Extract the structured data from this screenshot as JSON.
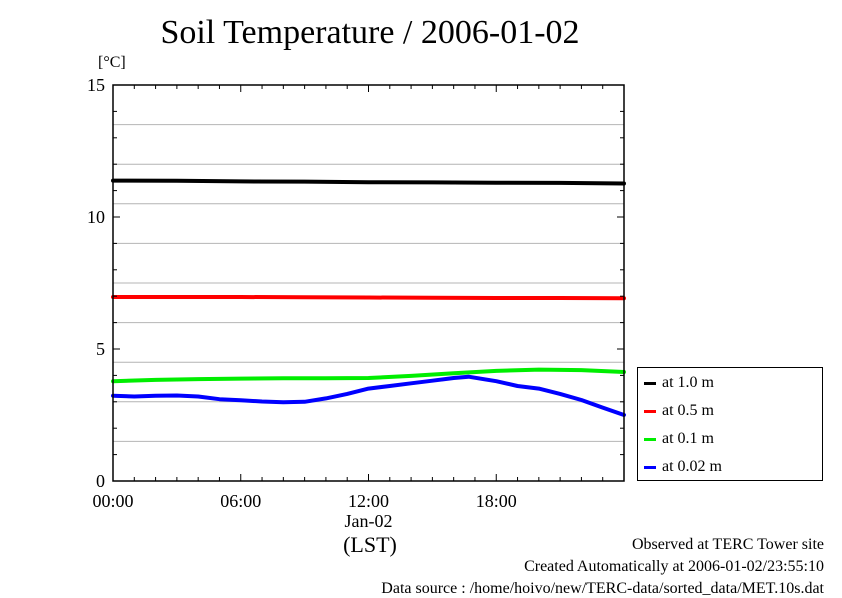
{
  "title": "Soil Temperature / 2006-01-02",
  "chart_data": {
    "type": "line",
    "title": "Soil Temperature / 2006-01-02",
    "ylabel": "[°C]",
    "xlabel": "(LST)",
    "date_label": "Jan-02",
    "xlim": [
      0,
      24
    ],
    "ylim": [
      0,
      15
    ],
    "x_ticks": [
      {
        "value": 0,
        "label": "00:00"
      },
      {
        "value": 6,
        "label": "06:00"
      },
      {
        "value": 12,
        "label": "12:00"
      },
      {
        "value": 18,
        "label": "18:00"
      }
    ],
    "y_ticks": [
      {
        "value": 0,
        "label": "0"
      },
      {
        "value": 5,
        "label": "5"
      },
      {
        "value": 10,
        "label": "10"
      },
      {
        "value": 15,
        "label": "15"
      }
    ],
    "grid": true,
    "series": [
      {
        "name": "at 1.0 m",
        "color": "#000000",
        "x": [
          0,
          3,
          6,
          9,
          12,
          15,
          18,
          21,
          24
        ],
        "y": [
          11.38,
          11.37,
          11.35,
          11.34,
          11.32,
          11.31,
          11.3,
          11.29,
          11.27
        ]
      },
      {
        "name": "at 0.5 m",
        "color": "#ff0000",
        "x": [
          0,
          3,
          6,
          9,
          12,
          15,
          18,
          21,
          24
        ],
        "y": [
          6.97,
          6.97,
          6.97,
          6.96,
          6.95,
          6.94,
          6.93,
          6.93,
          6.92
        ]
      },
      {
        "name": "at 0.1 m",
        "color": "#00ee00",
        "x": [
          0,
          2,
          4,
          6,
          8,
          10,
          12,
          14,
          16,
          18,
          20,
          22,
          24
        ],
        "y": [
          3.78,
          3.83,
          3.86,
          3.88,
          3.89,
          3.89,
          3.9,
          3.98,
          4.08,
          4.17,
          4.22,
          4.2,
          4.13
        ]
      },
      {
        "name": "at 0.02 m",
        "color": "#0000ff",
        "x": [
          0,
          1,
          2,
          3,
          4,
          5,
          6,
          7,
          8,
          9,
          10,
          11,
          12,
          13,
          14,
          15,
          16,
          16.7,
          18,
          19,
          20,
          21,
          22,
          23,
          24
        ],
        "y": [
          3.23,
          3.2,
          3.23,
          3.24,
          3.2,
          3.1,
          3.06,
          3.01,
          2.98,
          3.0,
          3.13,
          3.3,
          3.5,
          3.6,
          3.7,
          3.8,
          3.9,
          3.95,
          3.78,
          3.6,
          3.5,
          3.3,
          3.07,
          2.78,
          2.5
        ]
      }
    ]
  },
  "footer": {
    "observed": "Observed at TERC Tower site",
    "created": "Created Automatically at 2006-01-02/23:55:10",
    "source": "Data source : /home/hoivo/new/TERC-data/sorted_data/MET.10s.dat"
  }
}
